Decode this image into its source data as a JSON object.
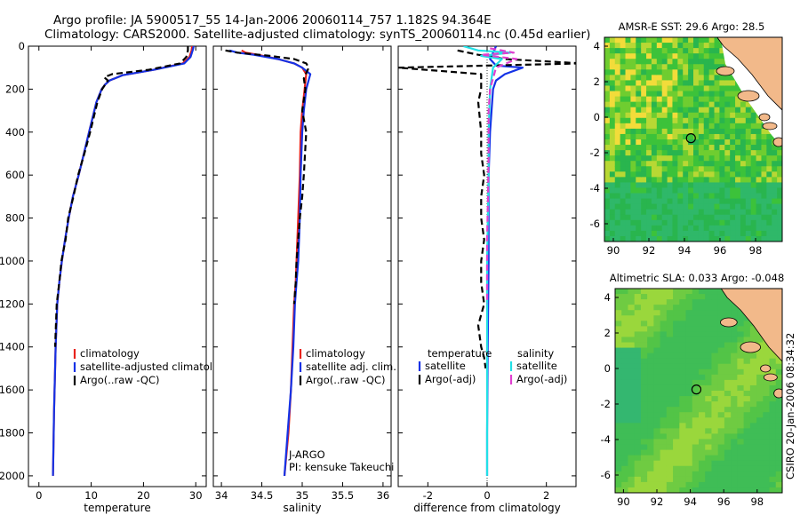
{
  "title_line1": "Argo profile: JA 5900517_55 14-Jan-2006 20060114_757 1.182S 94.364E",
  "title_line2": "Climatology: CARS2000. Satellite-adjusted climatology: synTS_20060114.nc (0.45d earlier)",
  "side_label": "CSIRO 20-Jan-2006 08:34:32",
  "colors": {
    "climatology": "#e8231c",
    "satellite": "#1432e6",
    "argo": "#000000",
    "satellite_cyan": "#22e0e6",
    "argo_magenta": "#e040d0",
    "land": "#f2b98a"
  },
  "chart_data": [
    {
      "type": "line",
      "xlabel": "temperature",
      "xlim": [
        -2,
        32
      ],
      "ylim": [
        2050,
        0
      ],
      "xticks": [
        0,
        10,
        20,
        30
      ],
      "yticks": [
        0,
        200,
        400,
        600,
        800,
        1000,
        1200,
        1400,
        1600,
        1800,
        2000
      ],
      "legend": [
        "climatology",
        "satellite-adjusted climatology",
        "Argo(..raw -QC)"
      ],
      "series": [
        {
          "name": "climatology",
          "color": "#e8231c",
          "style": "solid",
          "x": [
            29.3,
            29.2,
            28.8,
            27.5,
            22,
            16,
            13.5,
            12.6,
            12.0,
            11.0,
            9.6,
            8.6,
            7.6,
            6.5,
            5.7,
            5.0,
            4.4,
            3.9,
            3.5,
            3.2,
            2.9,
            2.7
          ],
          "y": [
            0,
            20,
            50,
            80,
            110,
            135,
            160,
            180,
            200,
            260,
            400,
            500,
            600,
            700,
            800,
            900,
            1000,
            1100,
            1200,
            1400,
            1700,
            2000
          ]
        },
        {
          "name": "satellite-adjusted climatology",
          "color": "#1432e6",
          "style": "solid",
          "x": [
            29.6,
            29.4,
            29.0,
            27.8,
            22,
            16,
            13.5,
            12.6,
            12.0,
            11.0,
            9.6,
            8.6,
            7.6,
            6.5,
            5.7,
            5.0,
            4.4,
            3.9,
            3.5,
            3.2,
            2.9,
            2.7
          ],
          "y": [
            0,
            20,
            50,
            80,
            110,
            135,
            160,
            180,
            200,
            260,
            400,
            500,
            600,
            700,
            800,
            900,
            1000,
            1100,
            1200,
            1400,
            1700,
            2000
          ]
        },
        {
          "name": "Argo(..raw -QC)",
          "color": "#000000",
          "style": "dashed",
          "x": [
            28.5,
            28.5,
            28.2,
            27,
            21,
            14,
            12.5,
            13.2,
            12.1,
            11.2,
            9.8,
            8.7,
            7.5,
            6.6,
            5.6,
            5.1,
            4.3,
            3.9,
            3.4,
            3.1
          ],
          "y": [
            0,
            20,
            50,
            80,
            110,
            130,
            145,
            160,
            200,
            260,
            400,
            500,
            600,
            700,
            800,
            900,
            1000,
            1100,
            1200,
            1400
          ]
        }
      ]
    },
    {
      "type": "line",
      "xlabel": "salinity",
      "xlim": [
        33.9,
        36.1
      ],
      "ylim": [
        2050,
        0
      ],
      "xticks": [
        34,
        34.5,
        35,
        35.5,
        36
      ],
      "legend": [
        "climatology",
        "satellite adj. clim.",
        "Argo(..raw -QC)"
      ],
      "annotations": [
        "J-ARGO",
        "PI: kensuke Takeuchi"
      ],
      "series": [
        {
          "name": "climatology",
          "color": "#e8231c",
          "style": "solid",
          "x": [
            34.25,
            34.3,
            34.45,
            34.7,
            34.9,
            35.0,
            35.05,
            35.03,
            35.0,
            34.98,
            34.97,
            34.95,
            34.93,
            34.92,
            34.9,
            34.88,
            34.86,
            34.83,
            34.78
          ],
          "y": [
            20,
            30,
            40,
            60,
            80,
            100,
            130,
            200,
            300,
            400,
            600,
            800,
            1000,
            1100,
            1200,
            1400,
            1600,
            1800,
            2000
          ]
        },
        {
          "name": "satellite adj. clim.",
          "color": "#1432e6",
          "style": "solid",
          "x": [
            34.1,
            34.2,
            34.4,
            34.7,
            34.9,
            35.0,
            35.1,
            35.05,
            35.02,
            35.0,
            34.98,
            34.97,
            34.95,
            34.93,
            34.91,
            34.89,
            34.86,
            34.82,
            34.78
          ],
          "y": [
            20,
            30,
            40,
            60,
            80,
            100,
            130,
            200,
            300,
            400,
            600,
            800,
            1000,
            1100,
            1200,
            1400,
            1600,
            1800,
            2000
          ]
        },
        {
          "name": "Argo(..raw -QC)",
          "color": "#000000",
          "style": "dashed",
          "x": [
            34.05,
            34.2,
            34.6,
            34.9,
            35.05,
            35.08,
            35.02,
            35.04,
            35.0,
            35.05,
            35.02,
            35.0,
            34.97,
            34.95,
            34.93,
            34.92,
            34.9
          ],
          "y": [
            20,
            30,
            45,
            60,
            80,
            100,
            150,
            200,
            300,
            400,
            600,
            700,
            800,
            900,
            1000,
            1100,
            1200
          ]
        }
      ]
    },
    {
      "type": "line",
      "xlabel": "difference from climatology",
      "xlim": [
        -3,
        3
      ],
      "ylim": [
        2050,
        0
      ],
      "xticks": [
        -2,
        0,
        2
      ],
      "legend_left": {
        "heading": "temperature",
        "items": [
          "satellite",
          "Argo(-adj)"
        ]
      },
      "legend_right": {
        "heading": "salinity",
        "items": [
          "satellite",
          "Argo(-adj)"
        ]
      },
      "series": [
        {
          "name": "temperature satellite",
          "color": "#1432e6",
          "style": "solid",
          "x": [
            0.3,
            0.2,
            0.1,
            0.3,
            1.2,
            0.6,
            0.3,
            0.2,
            0.15,
            0.1,
            0.05,
            0.05,
            0.05,
            0.02,
            0.0,
            0.0
          ],
          "y": [
            0,
            30,
            60,
            90,
            100,
            130,
            160,
            200,
            300,
            400,
            600,
            800,
            1000,
            1400,
            1800,
            2000
          ]
        },
        {
          "name": "temperature Argo(-adj)",
          "color": "#000000",
          "style": "dashed",
          "x": [
            -1.0,
            -0.3,
            0.6,
            3.2,
            -3.0,
            -0.2,
            -0.2,
            -0.3,
            -0.2,
            -0.2,
            -0.1,
            -0.2,
            -0.2,
            -0.1,
            -0.2,
            -0.2,
            -0.1,
            -0.2,
            -0.3,
            -0.2,
            -0.1,
            -0.05
          ],
          "y": [
            20,
            40,
            60,
            80,
            100,
            130,
            200,
            260,
            400,
            500,
            600,
            700,
            800,
            900,
            1000,
            1100,
            1200,
            1250,
            1300,
            1400,
            1450,
            1500
          ]
        },
        {
          "name": "salinity satellite",
          "color": "#22e0e6",
          "style": "solid",
          "x": [
            -0.8,
            -0.3,
            0.8,
            -0.2,
            0.5,
            0.2,
            0.1,
            0.05,
            0.05,
            0.0,
            0.0,
            0.0
          ],
          "y": [
            0,
            20,
            30,
            45,
            60,
            100,
            200,
            400,
            600,
            1000,
            1400,
            2000
          ]
        },
        {
          "name": "salinity Argo(-adj)",
          "color": "#e040d0",
          "style": "dashed",
          "x": [
            0.1,
            0.9,
            -0.2,
            1.0,
            0.3,
            0.1,
            0.05,
            0.05,
            0.03,
            0.0,
            0.0,
            0.0
          ],
          "y": [
            10,
            30,
            40,
            60,
            100,
            200,
            300,
            500,
            700,
            900,
            1100,
            1200
          ]
        }
      ]
    },
    {
      "type": "heatmap",
      "title": "AMSR-E SST: 29.6 Argo: 28.5",
      "xlim": [
        89.5,
        99.5
      ],
      "ylim": [
        -7,
        4.5
      ],
      "xticks": [
        90,
        92,
        94,
        96,
        98
      ],
      "yticks": [
        4,
        2,
        0,
        -2,
        -4,
        -6
      ],
      "marker": {
        "lon": 94.364,
        "lat": -1.182
      }
    },
    {
      "type": "heatmap",
      "title": "Altimetric SLA: 0.033 Argo: -0.048",
      "xlim": [
        89.5,
        99.5
      ],
      "ylim": [
        -7,
        4.5
      ],
      "xticks": [
        90,
        92,
        94,
        96,
        98
      ],
      "yticks": [
        4,
        2,
        0,
        -2,
        -4,
        -6
      ],
      "marker": {
        "lon": 94.364,
        "lat": -1.182
      }
    }
  ]
}
